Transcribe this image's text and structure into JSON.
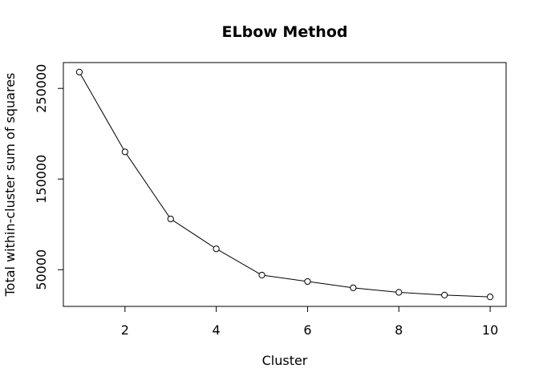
{
  "chart_data": {
    "type": "line",
    "title": "ELbow Method",
    "xlabel": "Cluster",
    "ylabel": "Total within-cluster sum of squares",
    "x": [
      1,
      2,
      3,
      4,
      5,
      6,
      7,
      8,
      9,
      10
    ],
    "y": [
      268000,
      180000,
      106000,
      73000,
      44000,
      37000,
      30000,
      25000,
      22000,
      20000
    ],
    "xlim": [
      0.65,
      10.35
    ],
    "ylim": [
      9500,
      278500
    ],
    "x_ticks": [
      2,
      4,
      6,
      8,
      10
    ],
    "y_ticks": [
      50000,
      150000,
      250000
    ],
    "marker": "open-circle",
    "line_color": "#000000",
    "grid": false
  }
}
